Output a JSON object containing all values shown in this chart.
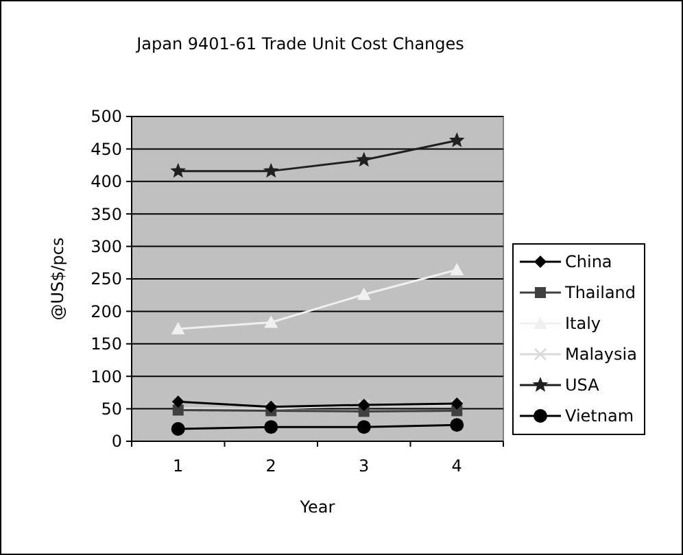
{
  "chart_data": {
    "type": "line",
    "title": "Japan 9401-61 Trade Unit Cost Changes",
    "xlabel": "Year",
    "ylabel": "@US$/pcs",
    "categories": [
      "1",
      "2",
      "3",
      "4"
    ],
    "series": [
      {
        "name": "China",
        "color": "#000000",
        "marker": "diamond",
        "values": [
          61,
          53,
          56,
          58
        ]
      },
      {
        "name": "Thailand",
        "color": "#404040",
        "marker": "square",
        "values": [
          48,
          47,
          46,
          47
        ]
      },
      {
        "name": "Italy",
        "color": "#f0f0f0",
        "marker": "triangle",
        "values": [
          173,
          183,
          226,
          264
        ]
      },
      {
        "name": "Malaysia",
        "color": "#d9d9d9",
        "marker": "cross",
        "values": [
          51,
          50,
          55,
          55
        ]
      },
      {
        "name": "USA",
        "color": "#202020",
        "marker": "star",
        "values": [
          416,
          416,
          433,
          463
        ]
      },
      {
        "name": "Vietnam",
        "color": "#000000",
        "marker": "circle",
        "values": [
          19,
          22,
          22,
          25
        ]
      }
    ],
    "ylim": [
      0,
      500
    ],
    "yticks": [
      0,
      50,
      100,
      150,
      200,
      250,
      300,
      350,
      400,
      450,
      500
    ],
    "grid": "y",
    "legend": "right"
  }
}
